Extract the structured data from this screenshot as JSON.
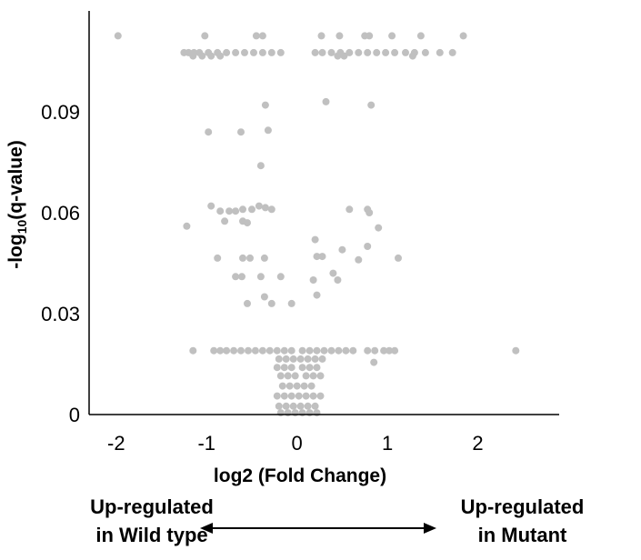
{
  "chart_data": {
    "type": "scatter",
    "xlabel": "log2 (Fold Change)",
    "ylabel_main": "-log",
    "ylabel_sub": "10",
    "ylabel_tail": "(q-value)",
    "xlim": [
      -2.3,
      2.9
    ],
    "ylim": [
      0,
      0.12
    ],
    "xticks": [
      -2,
      -1,
      0,
      1,
      2
    ],
    "xtick_labels": [
      "-2",
      "-1",
      "0",
      "1",
      "2"
    ],
    "yticks": [
      0,
      0.03,
      0.06,
      0.09
    ],
    "ytick_labels": [
      "0",
      "0.03",
      "0.06",
      "0.09"
    ],
    "grid": false,
    "point_color": "#c0c0c0",
    "points": [
      [
        -1.98,
        0.1126
      ],
      [
        -1.02,
        0.1126
      ],
      [
        -0.45,
        0.1126
      ],
      [
        -0.38,
        0.1126
      ],
      [
        0.27,
        0.1126
      ],
      [
        0.47,
        0.1126
      ],
      [
        0.75,
        0.1126
      ],
      [
        0.8,
        0.1126
      ],
      [
        1.05,
        0.1126
      ],
      [
        1.37,
        0.1126
      ],
      [
        1.84,
        0.1126
      ],
      [
        -1.25,
        0.1076
      ],
      [
        -1.2,
        0.1076
      ],
      [
        -1.14,
        0.1076
      ],
      [
        -1.08,
        0.1076
      ],
      [
        -0.98,
        0.1076
      ],
      [
        -0.88,
        0.1076
      ],
      [
        -0.78,
        0.1076
      ],
      [
        -0.68,
        0.1076
      ],
      [
        -0.58,
        0.1076
      ],
      [
        -0.48,
        0.1076
      ],
      [
        -0.38,
        0.1076
      ],
      [
        -0.28,
        0.1076
      ],
      [
        -0.18,
        0.1076
      ],
      [
        0.2,
        0.1076
      ],
      [
        0.28,
        0.1076
      ],
      [
        0.38,
        0.1076
      ],
      [
        0.48,
        0.1076
      ],
      [
        0.58,
        0.1076
      ],
      [
        0.68,
        0.1076
      ],
      [
        0.78,
        0.1076
      ],
      [
        0.88,
        0.1076
      ],
      [
        0.98,
        0.1076
      ],
      [
        1.08,
        0.1076
      ],
      [
        1.2,
        0.1076
      ],
      [
        1.3,
        0.1076
      ],
      [
        1.42,
        0.1076
      ],
      [
        1.58,
        0.1076
      ],
      [
        1.72,
        0.1076
      ],
      [
        -1.15,
        0.1066
      ],
      [
        -1.05,
        0.1066
      ],
      [
        -0.95,
        0.1066
      ],
      [
        -0.85,
        0.1066
      ],
      [
        0.45,
        0.1066
      ],
      [
        0.52,
        0.1066
      ],
      [
        1.28,
        0.1066
      ],
      [
        -0.35,
        0.092
      ],
      [
        0.32,
        0.093
      ],
      [
        0.82,
        0.092
      ],
      [
        -0.98,
        0.084
      ],
      [
        -0.62,
        0.084
      ],
      [
        -0.32,
        0.0845
      ],
      [
        -0.4,
        0.074
      ],
      [
        -0.95,
        0.062
      ],
      [
        -0.85,
        0.0605
      ],
      [
        -0.75,
        0.0605
      ],
      [
        -0.68,
        0.0605
      ],
      [
        -0.6,
        0.061
      ],
      [
        -0.5,
        0.061
      ],
      [
        -0.42,
        0.062
      ],
      [
        -0.35,
        0.0615
      ],
      [
        -0.28,
        0.061
      ],
      [
        0.58,
        0.061
      ],
      [
        0.78,
        0.061
      ],
      [
        0.8,
        0.06
      ],
      [
        -1.22,
        0.056
      ],
      [
        -0.8,
        0.0575
      ],
      [
        -0.6,
        0.0575
      ],
      [
        -0.55,
        0.057
      ],
      [
        0.9,
        0.0555
      ],
      [
        0.2,
        0.052
      ],
      [
        0.78,
        0.05
      ],
      [
        0.5,
        0.049
      ],
      [
        0.22,
        0.047
      ],
      [
        0.28,
        0.047
      ],
      [
        1.12,
        0.0465
      ],
      [
        -0.88,
        0.0465
      ],
      [
        -0.6,
        0.0465
      ],
      [
        -0.52,
        0.0465
      ],
      [
        -0.36,
        0.0465
      ],
      [
        -0.68,
        0.041
      ],
      [
        -0.61,
        0.041
      ],
      [
        -0.4,
        0.041
      ],
      [
        -0.18,
        0.041
      ],
      [
        0.4,
        0.042
      ],
      [
        0.68,
        0.046
      ],
      [
        0.18,
        0.04
      ],
      [
        0.45,
        0.04
      ],
      [
        -0.55,
        0.033
      ],
      [
        -0.36,
        0.035
      ],
      [
        -0.28,
        0.033
      ],
      [
        -0.06,
        0.033
      ],
      [
        0.22,
        0.0355
      ],
      [
        -1.15,
        0.019
      ],
      [
        -0.92,
        0.019
      ],
      [
        -0.85,
        0.019
      ],
      [
        -0.78,
        0.019
      ],
      [
        -0.7,
        0.019
      ],
      [
        -0.62,
        0.019
      ],
      [
        -0.54,
        0.019
      ],
      [
        -0.46,
        0.019
      ],
      [
        -0.38,
        0.019
      ],
      [
        -0.3,
        0.019
      ],
      [
        -0.22,
        0.019
      ],
      [
        -0.14,
        0.019
      ],
      [
        -0.06,
        0.019
      ],
      [
        0.06,
        0.019
      ],
      [
        0.14,
        0.019
      ],
      [
        0.22,
        0.019
      ],
      [
        0.3,
        0.019
      ],
      [
        0.38,
        0.019
      ],
      [
        0.46,
        0.019
      ],
      [
        0.54,
        0.019
      ],
      [
        0.62,
        0.019
      ],
      [
        0.78,
        0.019
      ],
      [
        0.86,
        0.019
      ],
      [
        0.96,
        0.019
      ],
      [
        1.02,
        0.019
      ],
      [
        1.08,
        0.019
      ],
      [
        2.42,
        0.019
      ],
      [
        -0.2,
        0.0165
      ],
      [
        -0.12,
        0.0165
      ],
      [
        -0.04,
        0.0165
      ],
      [
        0.04,
        0.0165
      ],
      [
        0.12,
        0.0165
      ],
      [
        0.2,
        0.0165
      ],
      [
        0.28,
        0.0165
      ],
      [
        0.85,
        0.0155
      ],
      [
        -0.22,
        0.014
      ],
      [
        -0.14,
        0.014
      ],
      [
        -0.06,
        0.014
      ],
      [
        0.06,
        0.014
      ],
      [
        0.14,
        0.014
      ],
      [
        0.22,
        0.014
      ],
      [
        -0.18,
        0.0115
      ],
      [
        -0.1,
        0.0115
      ],
      [
        -0.02,
        0.0115
      ],
      [
        0.1,
        0.0115
      ],
      [
        0.18,
        0.0115
      ],
      [
        0.26,
        0.0115
      ],
      [
        -0.16,
        0.0085
      ],
      [
        -0.08,
        0.0085
      ],
      [
        0.0,
        0.0085
      ],
      [
        0.08,
        0.0085
      ],
      [
        0.16,
        0.0085
      ],
      [
        -0.22,
        0.0055
      ],
      [
        -0.14,
        0.0055
      ],
      [
        -0.06,
        0.0055
      ],
      [
        0.02,
        0.0055
      ],
      [
        0.1,
        0.0055
      ],
      [
        0.18,
        0.0055
      ],
      [
        0.26,
        0.0055
      ],
      [
        -0.2,
        0.0025
      ],
      [
        -0.12,
        0.0025
      ],
      [
        -0.04,
        0.0025
      ],
      [
        0.04,
        0.0025
      ],
      [
        0.12,
        0.0025
      ],
      [
        0.2,
        0.0025
      ],
      [
        -0.18,
        0.0005
      ],
      [
        -0.1,
        0.0005
      ],
      [
        -0.02,
        0.0005
      ],
      [
        0.06,
        0.0005
      ],
      [
        0.14,
        0.0005
      ],
      [
        0.22,
        0.0005
      ]
    ]
  },
  "annotations": {
    "left_line1": "Up-regulated",
    "left_line2": "in Wild type",
    "right_line1": "Up-regulated",
    "right_line2": "in Mutant"
  }
}
